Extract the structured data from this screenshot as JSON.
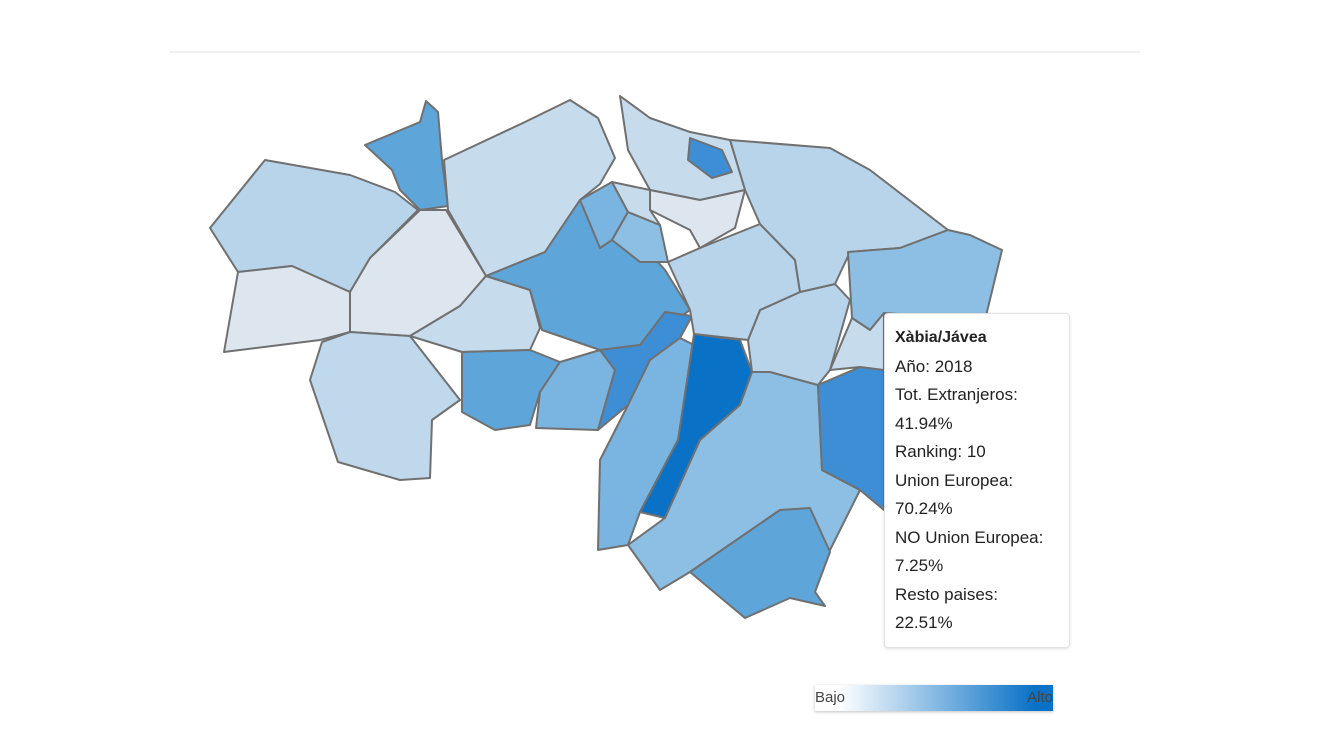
{
  "tooltip": {
    "title": "Xàbia/Jávea",
    "lines": [
      "Año: 2018",
      "Tot. Extranjeros: 41.94%",
      "Ranking: 10",
      "Union Europea: 70.24%",
      "NO Union Europea: 7.25%",
      "Resto paises: 22.51%"
    ]
  },
  "legend": {
    "low": "Bajo",
    "high": "Alto"
  }
}
